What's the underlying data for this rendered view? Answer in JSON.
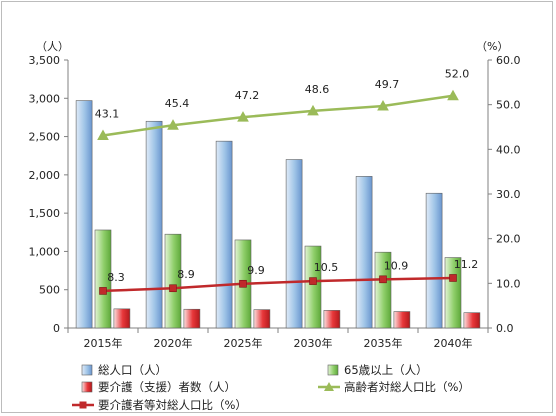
{
  "chart_data": {
    "type": "bar",
    "categories": [
      "2015年",
      "2020年",
      "2025年",
      "2030年",
      "2035年",
      "2040年"
    ],
    "y_left_unit": "（人）",
    "y_right_unit": "（%）",
    "y_left_ticks": [
      "0",
      "500",
      "1,000",
      "1,500",
      "2,000",
      "2,500",
      "3,000",
      "3,500"
    ],
    "y_right_ticks": [
      "0.0",
      "10.0",
      "20.0",
      "30.0",
      "40.0",
      "50.0",
      "60.0"
    ],
    "ylim_left": [
      0,
      3500
    ],
    "ylim_right": [
      0,
      60
    ],
    "grid": false,
    "legend_position": "bottom",
    "bar_series": [
      {
        "name": "総人口（人）",
        "values": [
          2970,
          2700,
          2440,
          2200,
          1980,
          1760
        ],
        "color": "#9dc3e6"
      },
      {
        "name": "65歳以上（人）",
        "values": [
          1280,
          1225,
          1150,
          1070,
          990,
          920
        ],
        "color": "#8fcf6a"
      },
      {
        "name": "要介護（支援）者数（人）",
        "values": [
          250,
          245,
          240,
          230,
          215,
          200
        ],
        "color": "#e8373a"
      }
    ],
    "line_series": [
      {
        "name": "高齢者対総人口比（%）",
        "values": [
          43.1,
          45.4,
          47.2,
          48.6,
          49.7,
          52.0
        ],
        "labels": [
          "43.1",
          "45.4",
          "47.2",
          "48.6",
          "49.7",
          "52.0"
        ],
        "color": "#9bbb59",
        "marker": "triangle"
      },
      {
        "name": "要介護者等対総人口比（%）",
        "values": [
          8.3,
          8.9,
          9.9,
          10.5,
          10.9,
          11.2
        ],
        "labels": [
          "8.3",
          "8.9",
          "9.9",
          "10.5",
          "10.9",
          "11.2"
        ],
        "color": "#c0292b",
        "marker": "square"
      }
    ]
  }
}
